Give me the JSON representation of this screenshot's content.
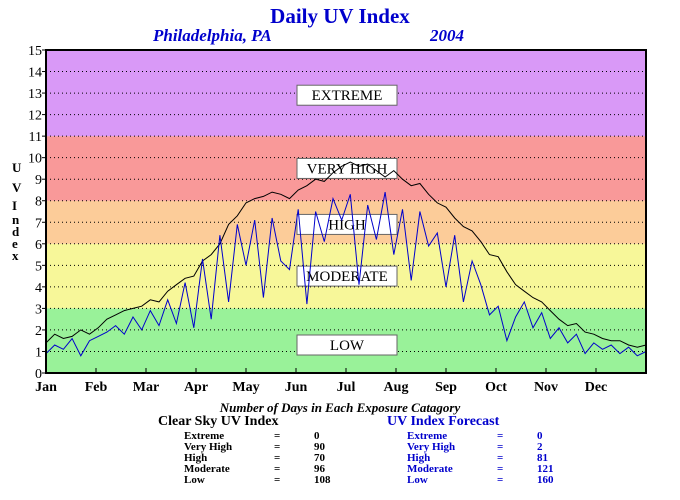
{
  "title": "Daily UV Index",
  "subtitle": {
    "location": "Philadelphia, PA",
    "year": "2004"
  },
  "ylabel_letters": [
    "U",
    "V",
    "I",
    "n",
    "d",
    "e",
    "x"
  ],
  "chart_data": {
    "type": "line",
    "title": "Daily UV Index",
    "ylabel": "UV Index",
    "xlabel": "",
    "ylim": [
      0,
      15
    ],
    "yticks": [
      "0",
      "1",
      "2",
      "3",
      "4",
      "5",
      "6",
      "7",
      "8",
      "9",
      "10",
      "11",
      "12",
      "13",
      "14",
      "15"
    ],
    "months": [
      "Jan",
      "Feb",
      "Mar",
      "Apr",
      "May",
      "Jun",
      "Jul",
      "Aug",
      "Sep",
      "Oct",
      "Nov",
      "Dec"
    ],
    "grid": true,
    "bands": [
      {
        "label": "LOW",
        "from": 0,
        "to": 3,
        "color": "#99f299"
      },
      {
        "label": "MODERATE",
        "from": 3,
        "to": 6,
        "color": "#f7f799"
      },
      {
        "label": "HIGH",
        "from": 6,
        "to": 8,
        "color": "#fccc99"
      },
      {
        "label": "VERY HIGH",
        "from": 8,
        "to": 11,
        "color": "#f99999"
      },
      {
        "label": "EXTREME",
        "from": 11,
        "to": 15,
        "color": "#d999f7"
      }
    ],
    "band_label_levels": {
      "LOW": 1.3,
      "MODERATE": 4.5,
      "HIGH": 6.9,
      "VERY HIGH": 9.5,
      "EXTREME": 12.9
    },
    "series": [
      {
        "key": "clear_sky",
        "color": "#000000",
        "values": [
          1.4,
          1.8,
          1.6,
          1.7,
          2.0,
          1.8,
          2.1,
          2.5,
          2.7,
          2.9,
          3.0,
          3.1,
          3.4,
          3.3,
          3.8,
          4.1,
          4.4,
          4.5,
          5.2,
          5.5,
          6.0,
          6.9,
          7.3,
          7.9,
          8.1,
          8.2,
          8.4,
          8.3,
          8.1,
          8.5,
          8.7,
          9.0,
          8.9,
          9.3,
          9.6,
          9.8,
          9.6,
          9.7,
          9.4,
          9.1,
          9.4,
          9.0,
          8.7,
          8.8,
          8.3,
          7.9,
          7.7,
          7.2,
          6.8,
          6.6,
          6.1,
          5.5,
          5.4,
          4.7,
          4.1,
          3.8,
          3.5,
          3.3,
          2.9,
          2.5,
          2.2,
          2.3,
          1.9,
          1.8,
          1.6,
          1.5,
          1.5,
          1.3,
          1.2,
          1.3
        ]
      },
      {
        "key": "forecast",
        "color": "#0000cc",
        "values": [
          0.9,
          1.3,
          1.1,
          1.6,
          0.8,
          1.5,
          1.7,
          1.9,
          2.2,
          1.8,
          2.6,
          2.0,
          2.9,
          2.2,
          3.4,
          2.3,
          4.2,
          2.1,
          5.3,
          2.5,
          6.4,
          3.3,
          6.9,
          5.0,
          7.1,
          3.5,
          7.2,
          5.2,
          4.8,
          7.6,
          3.2,
          7.5,
          6.1,
          8.1,
          7.1,
          8.3,
          4.1,
          7.8,
          6.2,
          8.4,
          5.5,
          7.6,
          4.3,
          7.5,
          5.9,
          6.5,
          4.0,
          6.4,
          3.3,
          5.2,
          4.1,
          2.7,
          3.1,
          1.5,
          2.6,
          3.3,
          2.1,
          2.8,
          1.6,
          2.1,
          1.4,
          1.8,
          0.9,
          1.4,
          1.1,
          1.3,
          0.9,
          1.2,
          0.8,
          1.0
        ]
      }
    ]
  },
  "counts": {
    "title": "Number of Days in Each Exposure Catagory",
    "clear_sky": {
      "title": "Clear Sky UV Index",
      "color": "#000000",
      "rows": [
        {
          "label": "Extreme",
          "eq": "=",
          "value": "0"
        },
        {
          "label": "Very High",
          "eq": "=",
          "value": "90"
        },
        {
          "label": "High",
          "eq": "=",
          "value": "70"
        },
        {
          "label": "Moderate",
          "eq": "=",
          "value": "96"
        },
        {
          "label": "Low",
          "eq": "=",
          "value": "108"
        }
      ]
    },
    "forecast": {
      "title": "UV Index Forecast",
      "color": "#0000cc",
      "rows": [
        {
          "label": "Extreme",
          "eq": "=",
          "value": "0"
        },
        {
          "label": "Very High",
          "eq": "=",
          "value": "2"
        },
        {
          "label": "High",
          "eq": "=",
          "value": "81"
        },
        {
          "label": "Moderate",
          "eq": "=",
          "value": "121"
        },
        {
          "label": "Low",
          "eq": "=",
          "value": "160"
        }
      ]
    }
  }
}
